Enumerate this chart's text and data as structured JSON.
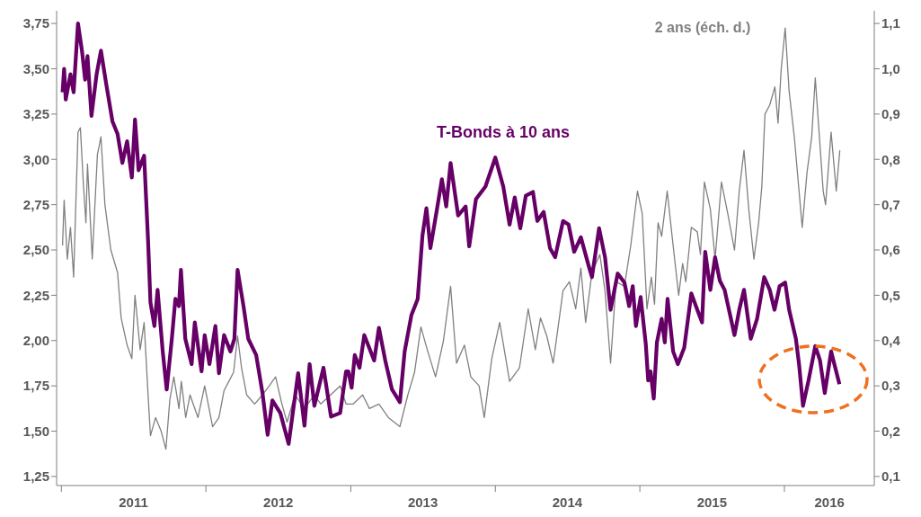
{
  "chart_data": {
    "type": "line",
    "marker": "none",
    "line_style": "solid",
    "xlim": [
      "2010-12-20",
      "2016-08-15"
    ],
    "xticks": [
      {
        "value": "2011-01-01",
        "label": null
      },
      {
        "value": "2012-01-01",
        "label": null
      },
      {
        "value": "2013-01-01",
        "label": null
      },
      {
        "value": "2014-01-01",
        "label": null
      },
      {
        "value": "2015-01-01",
        "label": null
      },
      {
        "value": "2016-01-01",
        "label": null
      },
      {
        "value": "2011-07-02",
        "label": "2011"
      },
      {
        "value": "2012-07-02",
        "label": "2012"
      },
      {
        "value": "2013-07-02",
        "label": "2013"
      },
      {
        "value": "2014-07-02",
        "label": "2014"
      },
      {
        "value": "2015-07-02",
        "label": "2015"
      },
      {
        "value": "2016-04-24",
        "label": "2016"
      }
    ],
    "ylim": [
      1.2,
      3.82
    ],
    "yticks": [
      {
        "value": 1.25,
        "label": "1,25"
      },
      {
        "value": 1.5,
        "label": "1,50"
      },
      {
        "value": 1.75,
        "label": "1,75"
      },
      {
        "value": 2.0,
        "label": "2,00"
      },
      {
        "value": 2.25,
        "label": "2,25"
      },
      {
        "value": 2.5,
        "label": "2,50"
      },
      {
        "value": 2.75,
        "label": "2,75"
      },
      {
        "value": 3.0,
        "label": "3,00"
      },
      {
        "value": 3.25,
        "label": "3,25"
      },
      {
        "value": 3.5,
        "label": "3,50"
      },
      {
        "value": 3.75,
        "label": "3,75"
      }
    ],
    "y2lim": [
      0.08,
      1.128
    ],
    "y2ticks": [
      {
        "value": 0.1,
        "label": "0,1"
      },
      {
        "value": 0.2,
        "label": "0,2"
      },
      {
        "value": 0.3,
        "label": "0,3"
      },
      {
        "value": 0.4,
        "label": "0,4"
      },
      {
        "value": 0.5,
        "label": "0,5"
      },
      {
        "value": 0.6,
        "label": "0,6"
      },
      {
        "value": 0.7,
        "label": "0,7"
      },
      {
        "value": 0.8,
        "label": "0,8"
      },
      {
        "value": 0.9,
        "label": "0,9"
      },
      {
        "value": 1.0,
        "label": "1,0"
      },
      {
        "value": 1.1,
        "label": "1,1"
      }
    ],
    "series": [
      {
        "name": "2 ans (éch. d.)",
        "color": "#808080",
        "axis": "y2",
        "x": [
          "2011-01-04",
          "2011-01-08",
          "2011-01-16",
          "2011-01-24",
          "2011-02-01",
          "2011-02-12",
          "2011-02-18",
          "2011-02-26",
          "2011-03-04",
          "2011-03-08",
          "2011-03-20",
          "2011-04-02",
          "2011-04-11",
          "2011-04-21",
          "2011-05-06",
          "2011-05-23",
          "2011-06-01",
          "2011-06-16",
          "2011-06-28",
          "2011-07-06",
          "2011-07-19",
          "2011-07-29",
          "2011-08-08",
          "2011-08-14",
          "2011-08-27",
          "2011-09-10",
          "2011-09-22",
          "2011-10-02",
          "2011-10-12",
          "2011-10-25",
          "2011-10-31",
          "2011-11-11",
          "2011-11-22",
          "2011-12-12",
          "2011-12-29",
          "2012-01-18",
          "2012-02-03",
          "2012-02-16",
          "2012-02-28",
          "2012-03-11",
          "2012-03-21",
          "2012-03-31",
          "2012-04-13",
          "2012-05-03",
          "2012-05-23",
          "2012-06-09",
          "2012-06-25",
          "2012-07-11",
          "2012-07-24",
          "2012-08-13",
          "2012-09-06",
          "2012-10-01",
          "2012-10-17",
          "2012-11-11",
          "2012-12-05",
          "2012-12-20",
          "2013-01-07",
          "2013-01-31",
          "2013-02-17",
          "2013-03-13",
          "2013-04-06",
          "2013-05-05",
          "2013-05-25",
          "2013-06-11",
          "2013-06-27",
          "2013-07-13",
          "2013-08-03",
          "2013-08-23",
          "2013-09-10",
          "2013-09-25",
          "2013-10-15",
          "2013-10-31",
          "2013-11-21",
          "2013-12-04",
          "2013-12-23",
          "2014-01-12",
          "2014-02-06",
          "2014-03-03",
          "2014-03-25",
          "2014-04-12",
          "2014-04-25",
          "2014-05-11",
          "2014-05-27",
          "2014-06-21",
          "2014-07-07",
          "2014-07-23",
          "2014-08-05",
          "2014-08-17",
          "2014-09-02",
          "2014-09-22",
          "2014-10-05",
          "2014-10-19",
          "2014-11-02",
          "2014-11-23",
          "2014-12-09",
          "2014-12-26",
          "2015-01-07",
          "2015-01-19",
          "2015-01-30",
          "2015-02-07",
          "2015-02-16",
          "2015-02-25",
          "2015-03-11",
          "2015-03-26",
          "2015-04-09",
          "2015-04-19",
          "2015-04-27",
          "2015-05-11",
          "2015-05-26",
          "2015-06-03",
          "2015-06-13",
          "2015-06-28",
          "2015-07-10",
          "2015-07-26",
          "2015-08-11",
          "2015-08-28",
          "2015-09-09",
          "2015-09-21",
          "2015-10-03",
          "2015-10-16",
          "2015-10-28",
          "2015-11-05",
          "2015-11-13",
          "2015-11-25",
          "2015-12-08",
          "2015-12-16",
          "2015-12-24",
          "2016-01-03",
          "2016-01-13",
          "2016-01-26",
          "2016-02-07",
          "2016-02-15",
          "2016-02-27",
          "2016-03-10",
          "2016-03-19",
          "2016-03-27",
          "2016-04-08",
          "2016-04-14",
          "2016-04-28",
          "2016-05-11",
          "2016-05-20"
        ],
        "values": [
          0.61,
          0.71,
          0.58,
          0.65,
          0.54,
          0.86,
          0.87,
          0.74,
          0.66,
          0.79,
          0.58,
          0.81,
          0.85,
          0.7,
          0.6,
          0.55,
          0.45,
          0.39,
          0.36,
          0.5,
          0.38,
          0.44,
          0.28,
          0.19,
          0.23,
          0.2,
          0.16,
          0.27,
          0.32,
          0.25,
          0.31,
          0.23,
          0.28,
          0.23,
          0.3,
          0.21,
          0.23,
          0.29,
          0.31,
          0.33,
          0.41,
          0.34,
          0.28,
          0.26,
          0.28,
          0.3,
          0.32,
          0.26,
          0.22,
          0.28,
          0.25,
          0.28,
          0.26,
          0.28,
          0.3,
          0.26,
          0.26,
          0.28,
          0.25,
          0.26,
          0.23,
          0.21,
          0.28,
          0.33,
          0.43,
          0.38,
          0.32,
          0.4,
          0.52,
          0.35,
          0.39,
          0.32,
          0.3,
          0.23,
          0.36,
          0.44,
          0.31,
          0.34,
          0.47,
          0.38,
          0.45,
          0.41,
          0.35,
          0.51,
          0.53,
          0.47,
          0.56,
          0.44,
          0.55,
          0.59,
          0.51,
          0.35,
          0.53,
          0.52,
          0.61,
          0.73,
          0.68,
          0.47,
          0.54,
          0.48,
          0.66,
          0.63,
          0.73,
          0.61,
          0.5,
          0.57,
          0.53,
          0.65,
          0.64,
          0.59,
          0.75,
          0.69,
          0.58,
          0.75,
          0.68,
          0.6,
          0.73,
          0.82,
          0.69,
          0.58,
          0.66,
          0.74,
          0.9,
          0.92,
          0.96,
          0.88,
          1.0,
          1.09,
          0.95,
          0.85,
          0.73,
          0.65,
          0.77,
          0.85,
          0.98,
          0.88,
          0.73,
          0.7,
          0.86,
          0.73,
          0.82
        ]
      },
      {
        "name": "T-Bonds à 10 ans",
        "color": "#660066",
        "x": [
          "2011-01-04",
          "2011-01-08",
          "2011-01-12",
          "2011-01-24",
          "2011-02-01",
          "2011-02-12",
          "2011-02-22",
          "2011-03-02",
          "2011-03-08",
          "2011-03-18",
          "2011-03-31",
          "2011-04-11",
          "2011-04-24",
          "2011-05-10",
          "2011-05-23",
          "2011-06-04",
          "2011-06-16",
          "2011-06-28",
          "2011-07-06",
          "2011-07-15",
          "2011-07-29",
          "2011-08-08",
          "2011-08-14",
          "2011-08-24",
          "2011-09-01",
          "2011-09-14",
          "2011-09-24",
          "2011-10-07",
          "2011-10-16",
          "2011-10-25",
          "2011-10-30",
          "2011-11-10",
          "2011-11-26",
          "2011-12-04",
          "2011-12-21",
          "2011-12-29",
          "2012-01-10",
          "2012-01-25",
          "2012-02-03",
          "2012-02-16",
          "2012-03-03",
          "2012-03-13",
          "2012-03-21",
          "2012-04-05",
          "2012-04-17",
          "2012-05-07",
          "2012-05-23",
          "2012-06-05",
          "2012-06-17",
          "2012-07-07",
          "2012-07-28",
          "2012-08-21",
          "2012-09-06",
          "2012-09-19",
          "2012-10-01",
          "2012-10-24",
          "2012-11-12",
          "2012-12-05",
          "2012-12-20",
          "2012-12-26",
          "2013-01-03",
          "2013-01-11",
          "2013-01-23",
          "2013-02-04",
          "2013-03-01",
          "2013-03-13",
          "2013-03-29",
          "2013-04-15",
          "2013-05-05",
          "2013-05-17",
          "2013-06-03",
          "2013-06-19",
          "2013-07-01",
          "2013-07-11",
          "2013-07-21",
          "2013-08-07",
          "2013-08-19",
          "2013-08-30",
          "2013-09-10",
          "2013-09-29",
          "2013-10-18",
          "2013-10-27",
          "2013-11-13",
          "2013-12-07",
          "2014-01-01",
          "2014-01-21",
          "2014-02-06",
          "2014-02-19",
          "2014-03-05",
          "2014-03-19",
          "2014-04-06",
          "2014-04-17",
          "2014-05-03",
          "2014-05-19",
          "2014-06-01",
          "2014-06-21",
          "2014-07-05",
          "2014-07-19",
          "2014-08-05",
          "2014-08-25",
          "2014-09-02",
          "2014-09-20",
          "2014-10-05",
          "2014-10-19",
          "2014-11-06",
          "2014-11-23",
          "2014-12-05",
          "2014-12-14",
          "2014-12-22",
          "2015-01-03",
          "2015-01-16",
          "2015-01-22",
          "2015-01-28",
          "2015-02-05",
          "2015-02-13",
          "2015-02-25",
          "2015-03-05",
          "2015-03-12",
          "2015-03-26",
          "2015-04-07",
          "2015-04-23",
          "2015-05-11",
          "2015-05-26",
          "2015-06-07",
          "2015-06-15",
          "2015-06-28",
          "2015-07-10",
          "2015-07-22",
          "2015-08-03",
          "2015-08-15",
          "2015-08-28",
          "2015-09-09",
          "2015-09-21",
          "2015-10-08",
          "2015-10-24",
          "2015-11-11",
          "2015-11-25",
          "2015-12-07",
          "2015-12-20",
          "2016-01-03",
          "2016-01-13",
          "2016-01-30",
          "2016-02-07",
          "2016-02-17",
          "2016-03-02",
          "2016-03-19",
          "2016-03-31",
          "2016-04-12",
          "2016-04-28",
          "2016-05-19"
        ],
        "values": [
          3.37,
          3.5,
          3.33,
          3.47,
          3.37,
          3.75,
          3.6,
          3.44,
          3.57,
          3.24,
          3.47,
          3.6,
          3.42,
          3.21,
          3.14,
          2.98,
          3.1,
          2.9,
          3.22,
          2.94,
          3.02,
          2.55,
          2.21,
          2.08,
          2.28,
          1.94,
          1.73,
          2.01,
          2.23,
          2.19,
          2.39,
          2.01,
          1.87,
          2.1,
          1.83,
          2.03,
          1.87,
          2.08,
          1.82,
          2.03,
          1.94,
          2.01,
          2.39,
          2.19,
          2.01,
          1.92,
          1.71,
          1.48,
          1.67,
          1.6,
          1.43,
          1.82,
          1.53,
          1.87,
          1.64,
          1.85,
          1.58,
          1.6,
          1.83,
          1.83,
          1.74,
          1.92,
          1.85,
          2.03,
          1.89,
          2.07,
          1.89,
          1.73,
          1.66,
          1.94,
          2.14,
          2.23,
          2.58,
          2.73,
          2.51,
          2.73,
          2.89,
          2.74,
          2.98,
          2.69,
          2.74,
          2.52,
          2.78,
          2.85,
          3.01,
          2.85,
          2.64,
          2.79,
          2.62,
          2.8,
          2.82,
          2.66,
          2.71,
          2.51,
          2.46,
          2.66,
          2.64,
          2.49,
          2.57,
          2.41,
          2.35,
          2.62,
          2.46,
          2.17,
          2.37,
          2.32,
          2.19,
          2.3,
          2.08,
          2.24,
          1.98,
          1.78,
          1.83,
          1.68,
          1.99,
          2.12,
          1.99,
          2.23,
          1.94,
          1.87,
          1.96,
          2.26,
          2.17,
          2.1,
          2.49,
          2.28,
          2.46,
          2.33,
          2.28,
          2.16,
          2.03,
          2.17,
          2.28,
          2.01,
          2.12,
          2.35,
          2.28,
          2.17,
          2.3,
          2.32,
          2.17,
          2.01,
          1.87,
          1.64,
          1.78,
          1.97,
          1.89,
          1.71,
          1.94,
          1.76
        ]
      }
    ]
  }
}
